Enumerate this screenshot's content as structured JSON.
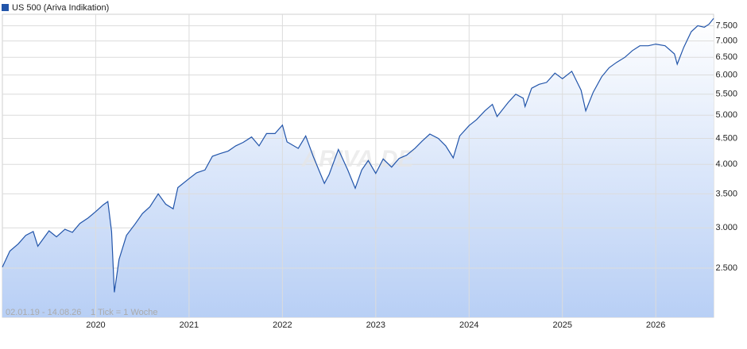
{
  "chart_data": {
    "type": "line",
    "title": "US 500 (Ariva Indikation)",
    "subtitle": "02.01.19 - 14.08.26",
    "annotation": "1 Tick = 1 Woche",
    "watermark": "ARIVA.DE",
    "log_scale": true,
    "grid": true,
    "area": true,
    "xlim": [
      2019.0,
      2026.62
    ],
    "xticks": [
      2020,
      2021,
      2022,
      2023,
      2024,
      2025,
      2026
    ],
    "ylim": [
      2000,
      7900
    ],
    "yticks": [
      {
        "value": 2500,
        "label": "2.500"
      },
      {
        "value": 3000,
        "label": "3.000"
      },
      {
        "value": 3500,
        "label": "3.500"
      },
      {
        "value": 4000,
        "label": "4.000"
      },
      {
        "value": 4500,
        "label": "4.500"
      },
      {
        "value": 5000,
        "label": "5.000"
      },
      {
        "value": 5500,
        "label": "5.500"
      },
      {
        "value": 6000,
        "label": "6.000"
      },
      {
        "value": 6500,
        "label": "6.500"
      },
      {
        "value": 7000,
        "label": "7.000"
      },
      {
        "value": 7500,
        "label": "7.500"
      }
    ],
    "x": [
      2019.0,
      2019.08,
      2019.17,
      2019.25,
      2019.33,
      2019.38,
      2019.5,
      2019.58,
      2019.67,
      2019.75,
      2019.83,
      2019.92,
      2020.0,
      2020.08,
      2020.13,
      2020.17,
      2020.2,
      2020.25,
      2020.33,
      2020.42,
      2020.5,
      2020.58,
      2020.67,
      2020.75,
      2020.83,
      2020.88,
      2021.0,
      2021.08,
      2021.17,
      2021.25,
      2021.33,
      2021.42,
      2021.5,
      2021.58,
      2021.67,
      2021.75,
      2021.83,
      2021.92,
      2022.0,
      2022.05,
      2022.17,
      2022.25,
      2022.33,
      2022.45,
      2022.5,
      2022.6,
      2022.7,
      2022.78,
      2022.85,
      2022.92,
      2023.0,
      2023.08,
      2023.17,
      2023.25,
      2023.33,
      2023.42,
      2023.5,
      2023.58,
      2023.67,
      2023.75,
      2023.83,
      2023.9,
      2024.0,
      2024.08,
      2024.17,
      2024.25,
      2024.3,
      2024.42,
      2024.5,
      2024.58,
      2024.6,
      2024.67,
      2024.75,
      2024.83,
      2024.92,
      2025.0,
      2025.1,
      2025.2,
      2025.25,
      2025.33,
      2025.42,
      2025.5,
      2025.58,
      2025.67,
      2025.75,
      2025.83,
      2025.92,
      2026.0,
      2026.1,
      2026.2,
      2026.23,
      2026.3,
      2026.38,
      2026.45,
      2026.52,
      2026.57,
      2026.62
    ],
    "series": [
      {
        "name": "US 500 (Ariva Indikation)",
        "color": "#2255aa",
        "area_color": "#b8cff5",
        "values": [
          2510,
          2700,
          2790,
          2900,
          2950,
          2760,
          2960,
          2880,
          2980,
          2940,
          3060,
          3140,
          3230,
          3330,
          3380,
          2950,
          2240,
          2600,
          2900,
          3050,
          3200,
          3300,
          3500,
          3340,
          3270,
          3600,
          3750,
          3850,
          3900,
          4150,
          4200,
          4250,
          4350,
          4420,
          4530,
          4350,
          4600,
          4600,
          4780,
          4430,
          4300,
          4550,
          4150,
          3670,
          3820,
          4280,
          3900,
          3590,
          3900,
          4070,
          3840,
          4100,
          3950,
          4110,
          4170,
          4300,
          4450,
          4590,
          4500,
          4350,
          4120,
          4550,
          4770,
          4900,
          5100,
          5250,
          4970,
          5300,
          5500,
          5400,
          5200,
          5650,
          5750,
          5800,
          6050,
          5900,
          6100,
          5600,
          5100,
          5550,
          5950,
          6200,
          6350,
          6500,
          6700,
          6850,
          6850,
          6900,
          6850,
          6600,
          6300,
          6800,
          7300,
          7500,
          7450,
          7550,
          7750
        ]
      }
    ]
  }
}
